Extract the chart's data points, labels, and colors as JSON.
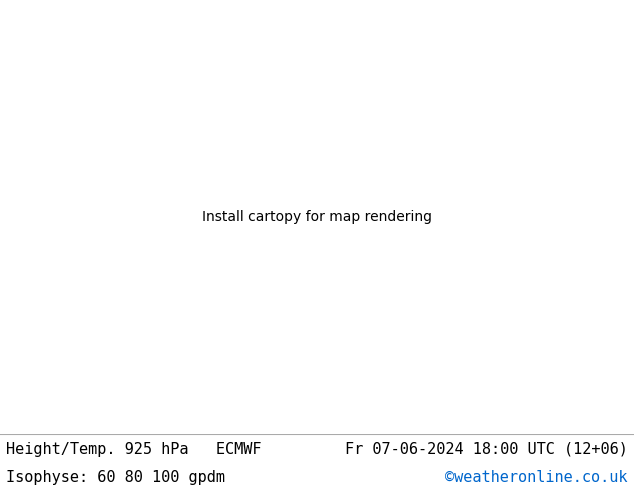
{
  "title_left": "Height/Temp. 925 hPa   ECMWF",
  "title_right": "Fr 07-06-2024 18:00 UTC (12+06)",
  "subtitle_left": "Isophyse: 60 80 100 gpdm",
  "subtitle_right": "©weatheronline.co.uk",
  "subtitle_right_color": "#0066cc",
  "bg_color": "#ffffff",
  "land_color": "#ccffcc",
  "sea_color": "#f0f0f0",
  "border_color": "#888888",
  "footer_bg": "#d8d8d8",
  "footer_text_color": "#000000",
  "text_font": "monospace",
  "text_size_title": 11,
  "text_size_subtitle": 11,
  "fig_width": 6.34,
  "fig_height": 4.9,
  "dpi": 100,
  "extent": [
    -75,
    60,
    20,
    75
  ],
  "iso_colors": [
    "#888888",
    "#ff00ff",
    "#ff0000",
    "#ff8800",
    "#ffdd00",
    "#88cc00",
    "#00cc44",
    "#00cccc",
    "#0088ff",
    "#0000ff",
    "#8800cc",
    "#cc00ff",
    "#ff44aa"
  ],
  "contour_lw": 0.7,
  "contour_alpha": 1.0
}
